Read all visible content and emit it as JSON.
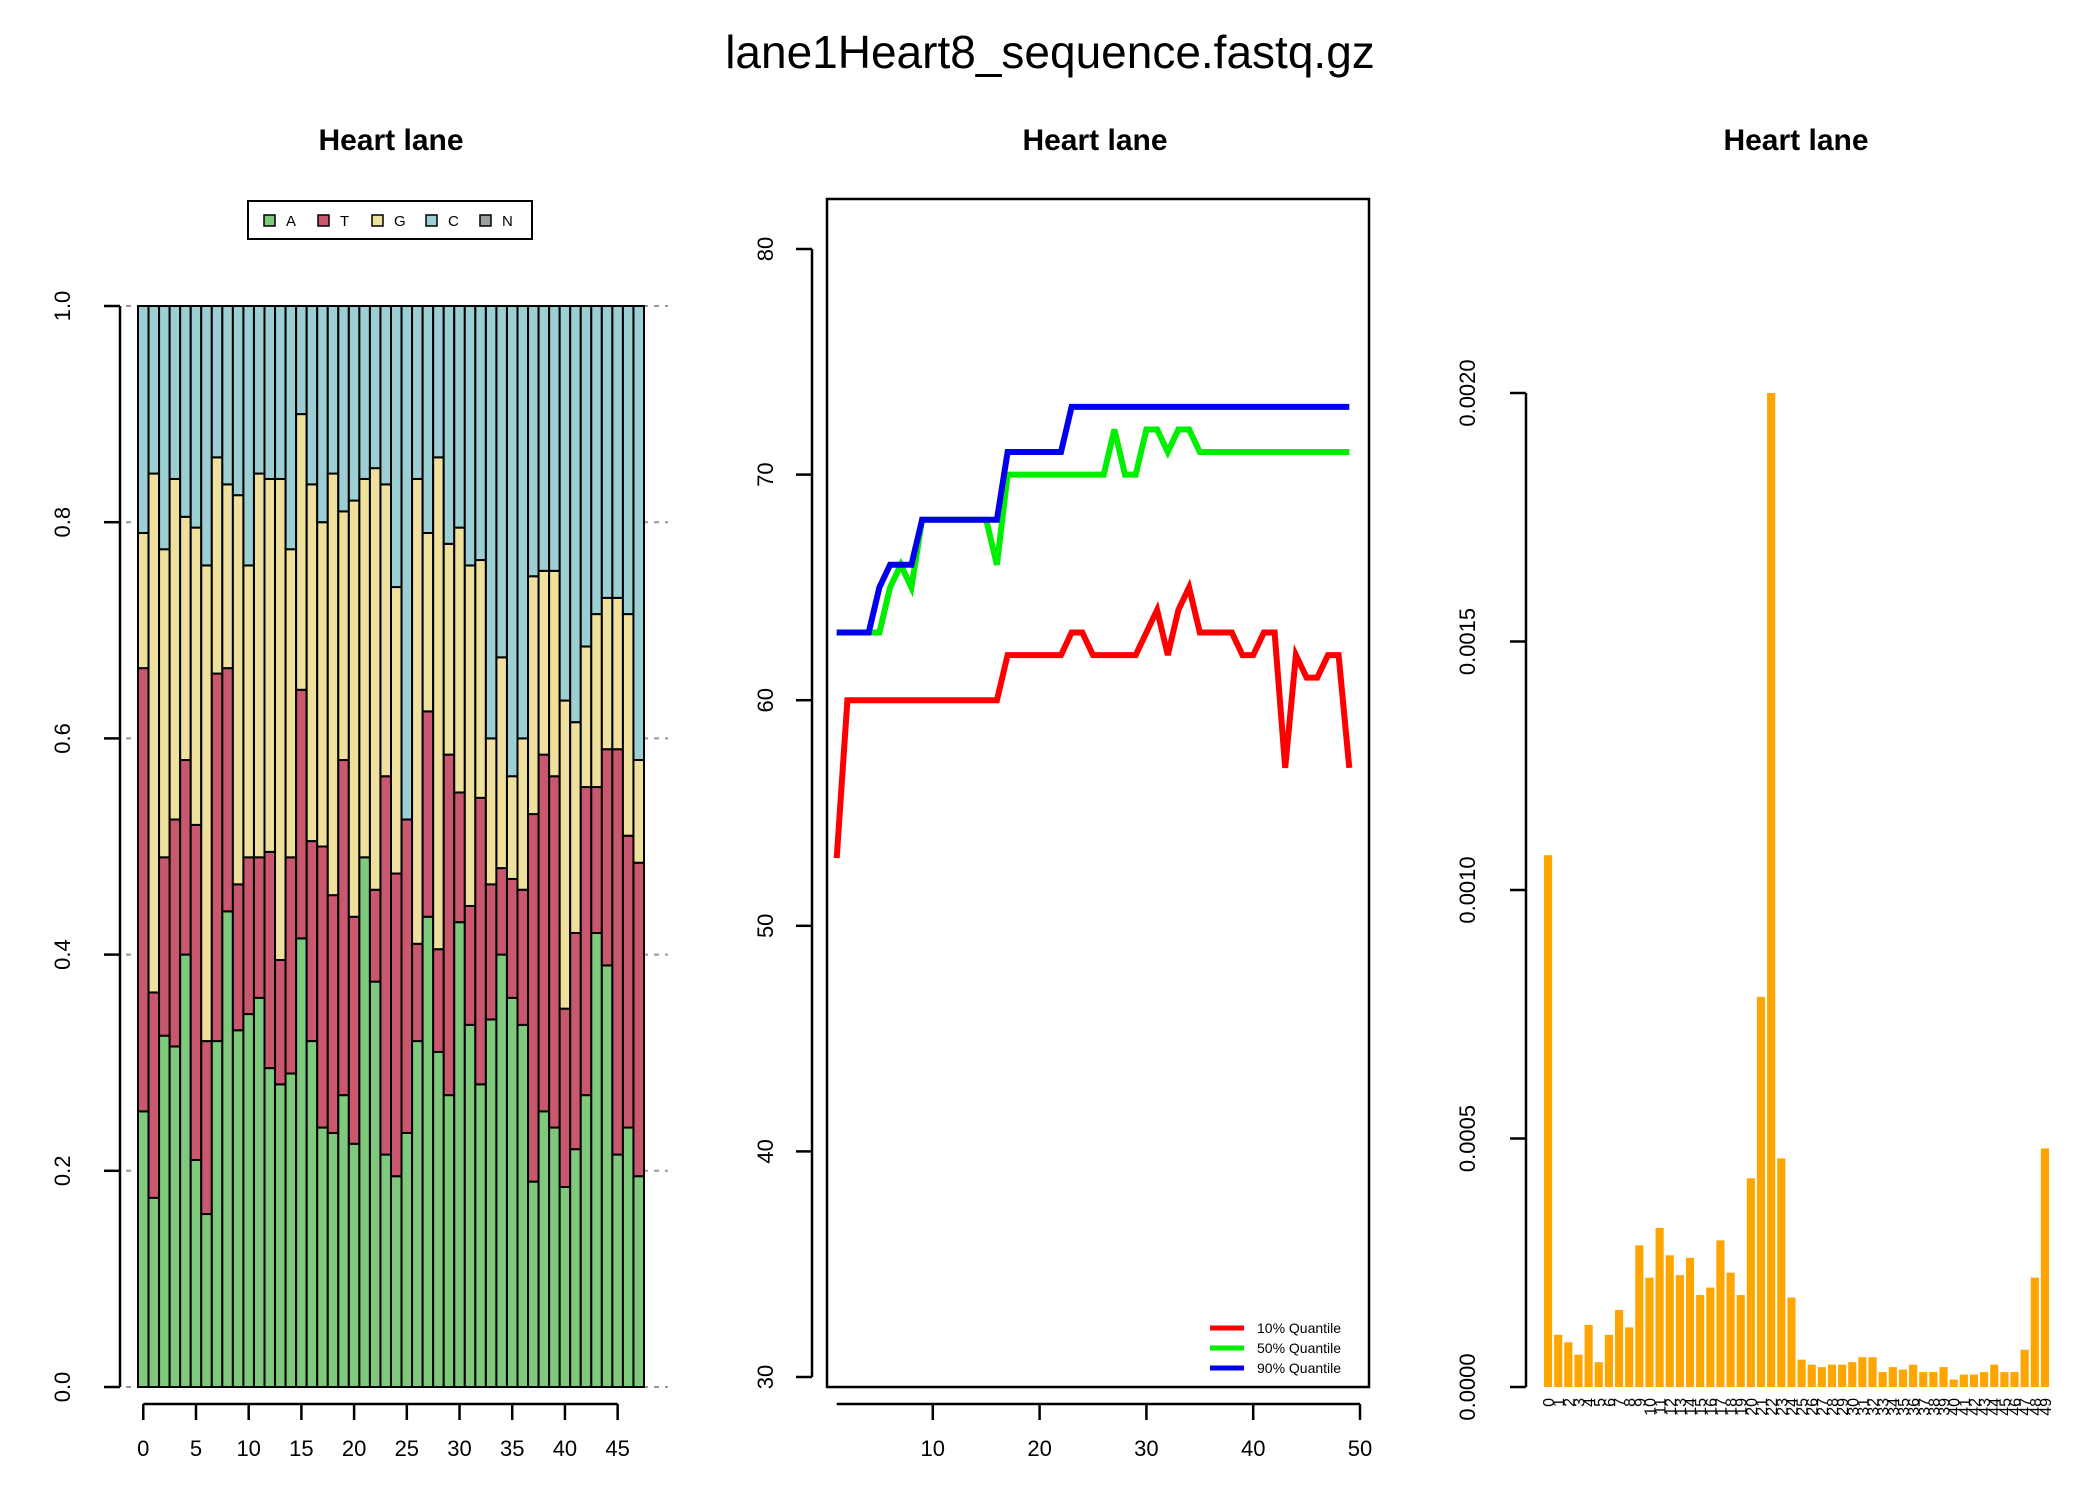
{
  "figure_title": "lane1Heart8_sequence.fastq.gz",
  "colors": {
    "A": "#7ec97b",
    "T": "#c9576e",
    "G": "#efe19d",
    "C": "#9ccfd3",
    "N": "#9aa0a0",
    "q10": "#ff0000",
    "q50": "#00ee00",
    "q90": "#0000ee",
    "bar": "#ffa500"
  },
  "chart_data": [
    {
      "type": "bar",
      "stacked": true,
      "title": "Heart lane",
      "legend": [
        "A",
        "T",
        "G",
        "C",
        "N"
      ],
      "legend_position": "top",
      "x_ticks": [
        "0",
        "5",
        "10",
        "15",
        "20",
        "25",
        "30",
        "35",
        "40",
        "45"
      ],
      "y_ticks": [
        "0.0",
        "0.2",
        "0.4",
        "0.6",
        "0.8",
        "1.0"
      ],
      "ylim": [
        0,
        1
      ],
      "grid": true,
      "series": [
        {
          "name": "A",
          "values": [
            0.255,
            0.175,
            0.325,
            0.315,
            0.4,
            0.21,
            0.16,
            0.32,
            0.44,
            0.33,
            0.345,
            0.36,
            0.295,
            0.28,
            0.29,
            0.415,
            0.32,
            0.24,
            0.235,
            0.27,
            0.225,
            0.49,
            0.375,
            0.215,
            0.195,
            0.235,
            0.32,
            0.435,
            0.31,
            0.27,
            0.43,
            0.335,
            0.28,
            0.34,
            0.4,
            0.36,
            0.335,
            0.19,
            0.255,
            0.24,
            0.185,
            0.22,
            0.27,
            0.42,
            0.39,
            0.215,
            0.24,
            0.195
          ]
        },
        {
          "name": "T",
          "values": [
            0.41,
            0.19,
            0.165,
            0.21,
            0.18,
            0.31,
            0.16,
            0.34,
            0.225,
            0.135,
            0.145,
            0.13,
            0.2,
            0.115,
            0.2,
            0.23,
            0.185,
            0.26,
            0.22,
            0.31,
            0.21,
            0.0,
            0.085,
            0.35,
            0.28,
            0.29,
            0.09,
            0.19,
            0.095,
            0.315,
            0.12,
            0.11,
            0.265,
            0.125,
            0.08,
            0.11,
            0.125,
            0.34,
            0.33,
            0.325,
            0.165,
            0.2,
            0.285,
            0.135,
            0.2,
            0.375,
            0.27,
            0.29
          ]
        },
        {
          "name": "G",
          "values": [
            0.125,
            0.48,
            0.285,
            0.315,
            0.225,
            0.275,
            0.44,
            0.2,
            0.17,
            0.36,
            0.27,
            0.355,
            0.345,
            0.445,
            0.285,
            0.255,
            0.33,
            0.3,
            0.39,
            0.23,
            0.385,
            0.35,
            0.39,
            0.27,
            0.265,
            0.0,
            0.43,
            0.165,
            0.455,
            0.195,
            0.245,
            0.315,
            0.22,
            0.135,
            0.195,
            0.095,
            0.14,
            0.22,
            0.17,
            0.19,
            0.285,
            0.195,
            0.13,
            0.16,
            0.14,
            0.14,
            0.205,
            0.095
          ]
        },
        {
          "name": "C",
          "values": [
            0.21,
            0.155,
            0.225,
            0.16,
            0.195,
            0.205,
            0.24,
            0.14,
            0.165,
            0.175,
            0.24,
            0.155,
            0.16,
            0.16,
            0.225,
            0.1,
            0.165,
            0.2,
            0.155,
            0.19,
            0.18,
            0.16,
            0.15,
            0.165,
            0.26,
            0.475,
            0.16,
            0.21,
            0.14,
            0.22,
            0.205,
            0.24,
            0.235,
            0.4,
            0.325,
            0.435,
            0.4,
            0.25,
            0.245,
            0.245,
            0.365,
            0.385,
            0.315,
            0.285,
            0.27,
            0.27,
            0.285,
            0.42
          ]
        },
        {
          "name": "N",
          "values": [
            0.0,
            0.0,
            0.0,
            0.0,
            0.0,
            0.0,
            0.0,
            0.0,
            0.0,
            0.0,
            0.0,
            0.0,
            0.0,
            0.0,
            0.0,
            0.0,
            0.0,
            0.0,
            0.0,
            0.0,
            0.0,
            0.0,
            0.0,
            0.0,
            0.0,
            0.0,
            0.0,
            0.0,
            0.0,
            0.0,
            0.0,
            0.0,
            0.0,
            0.0,
            0.0,
            0.0,
            0.0,
            0.0,
            0.0,
            0.0,
            0.0,
            0.0,
            0.0,
            0.0,
            0.0,
            0.0,
            0.0,
            0.0
          ]
        }
      ]
    },
    {
      "type": "line",
      "title": "Heart lane",
      "xlim": [
        0,
        50
      ],
      "ylim": [
        30,
        80
      ],
      "x_ticks": [
        "10",
        "20",
        "30",
        "40",
        "50"
      ],
      "x_tick_values": [
        10,
        20,
        30,
        40,
        50
      ],
      "y_ticks": [
        "30",
        "40",
        "50",
        "60",
        "70",
        "80"
      ],
      "y_tick_values": [
        30,
        40,
        50,
        60,
        70,
        80
      ],
      "legend_position": "bottom-right",
      "x": [
        1,
        2,
        3,
        4,
        5,
        6,
        7,
        8,
        9,
        10,
        11,
        12,
        13,
        14,
        15,
        16,
        17,
        18,
        19,
        20,
        21,
        22,
        23,
        24,
        25,
        26,
        27,
        28,
        29,
        30,
        31,
        32,
        33,
        34,
        35,
        36,
        37,
        38,
        39,
        40,
        41,
        42,
        43,
        44,
        45,
        46,
        47,
        48,
        49
      ],
      "series": [
        {
          "name": "10% Quantile",
          "values": [
            53,
            60,
            60,
            60,
            60,
            60,
            60,
            60,
            60,
            60,
            60,
            60,
            60,
            60,
            60,
            60,
            62,
            62,
            62,
            62,
            62,
            62,
            63,
            63,
            62,
            62,
            62,
            62,
            62,
            63,
            64,
            62,
            64,
            65,
            63,
            63,
            63,
            63,
            62,
            62,
            63,
            63,
            57,
            62,
            61,
            61,
            62,
            62,
            57
          ]
        },
        {
          "name": "50% Quantile",
          "values": [
            63,
            63,
            63,
            63,
            63,
            65,
            66,
            65,
            68,
            68,
            68,
            68,
            68,
            68,
            68,
            66,
            70,
            70,
            70,
            70,
            70,
            70,
            70,
            70,
            70,
            70,
            72,
            70,
            70,
            72,
            72,
            71,
            72,
            72,
            71,
            71,
            71,
            71,
            71,
            71,
            71,
            71,
            71,
            71,
            71,
            71,
            71,
            71,
            71
          ]
        },
        {
          "name": "90% Quantile",
          "values": [
            63,
            63,
            63,
            63,
            65,
            66,
            66,
            66,
            68,
            68,
            68,
            68,
            68,
            68,
            68,
            68,
            71,
            71,
            71,
            71,
            71,
            71,
            73,
            73,
            73,
            73,
            73,
            73,
            73,
            73,
            73,
            73,
            73,
            73,
            73,
            73,
            73,
            73,
            73,
            73,
            73,
            73,
            73,
            73,
            73,
            73,
            73,
            73,
            73
          ]
        }
      ]
    },
    {
      "type": "bar",
      "title": "Heart lane",
      "categories": [
        "0",
        "1",
        "2",
        "3",
        "4",
        "5",
        "6",
        "7",
        "8",
        "9",
        "10",
        "11",
        "12",
        "13",
        "14",
        "15",
        "16",
        "17",
        "18",
        "19",
        "20",
        "21",
        "22",
        "23",
        "24",
        "25",
        "26",
        "27",
        "28",
        "29",
        "30",
        "31",
        "32",
        "33",
        "34",
        "35",
        "36",
        "37",
        "38",
        "39",
        "40",
        "41",
        "42",
        "43",
        "44",
        "45",
        "46",
        "47",
        "48",
        "49"
      ],
      "values": [
        0.00107,
        0.000105,
        9e-05,
        6.5e-05,
        0.000125,
        5e-05,
        0.000105,
        0.000155,
        0.00012,
        0.000285,
        0.00022,
        0.00032,
        0.000265,
        0.000225,
        0.00026,
        0.000185,
        0.0002,
        0.000295,
        0.00023,
        0.000185,
        0.00042,
        0.000785,
        0.002,
        0.00046,
        0.00018,
        5.5e-05,
        4.5e-05,
        4e-05,
        4.5e-05,
        4.5e-05,
        5e-05,
        6e-05,
        6e-05,
        3e-05,
        4e-05,
        3.5e-05,
        4.5e-05,
        3e-05,
        3e-05,
        4e-05,
        1.5e-05,
        2.5e-05,
        2.5e-05,
        3e-05,
        4.5e-05,
        3e-05,
        3e-05,
        7.5e-05,
        0.00022,
        0.00048
      ],
      "y_ticks": [
        "0.0000",
        "0.0005",
        "0.0010",
        "0.0015",
        "0.0020"
      ],
      "y_tick_values": [
        0,
        0.0005,
        0.001,
        0.0015,
        0.002
      ],
      "ylim": [
        0,
        0.002
      ]
    }
  ]
}
